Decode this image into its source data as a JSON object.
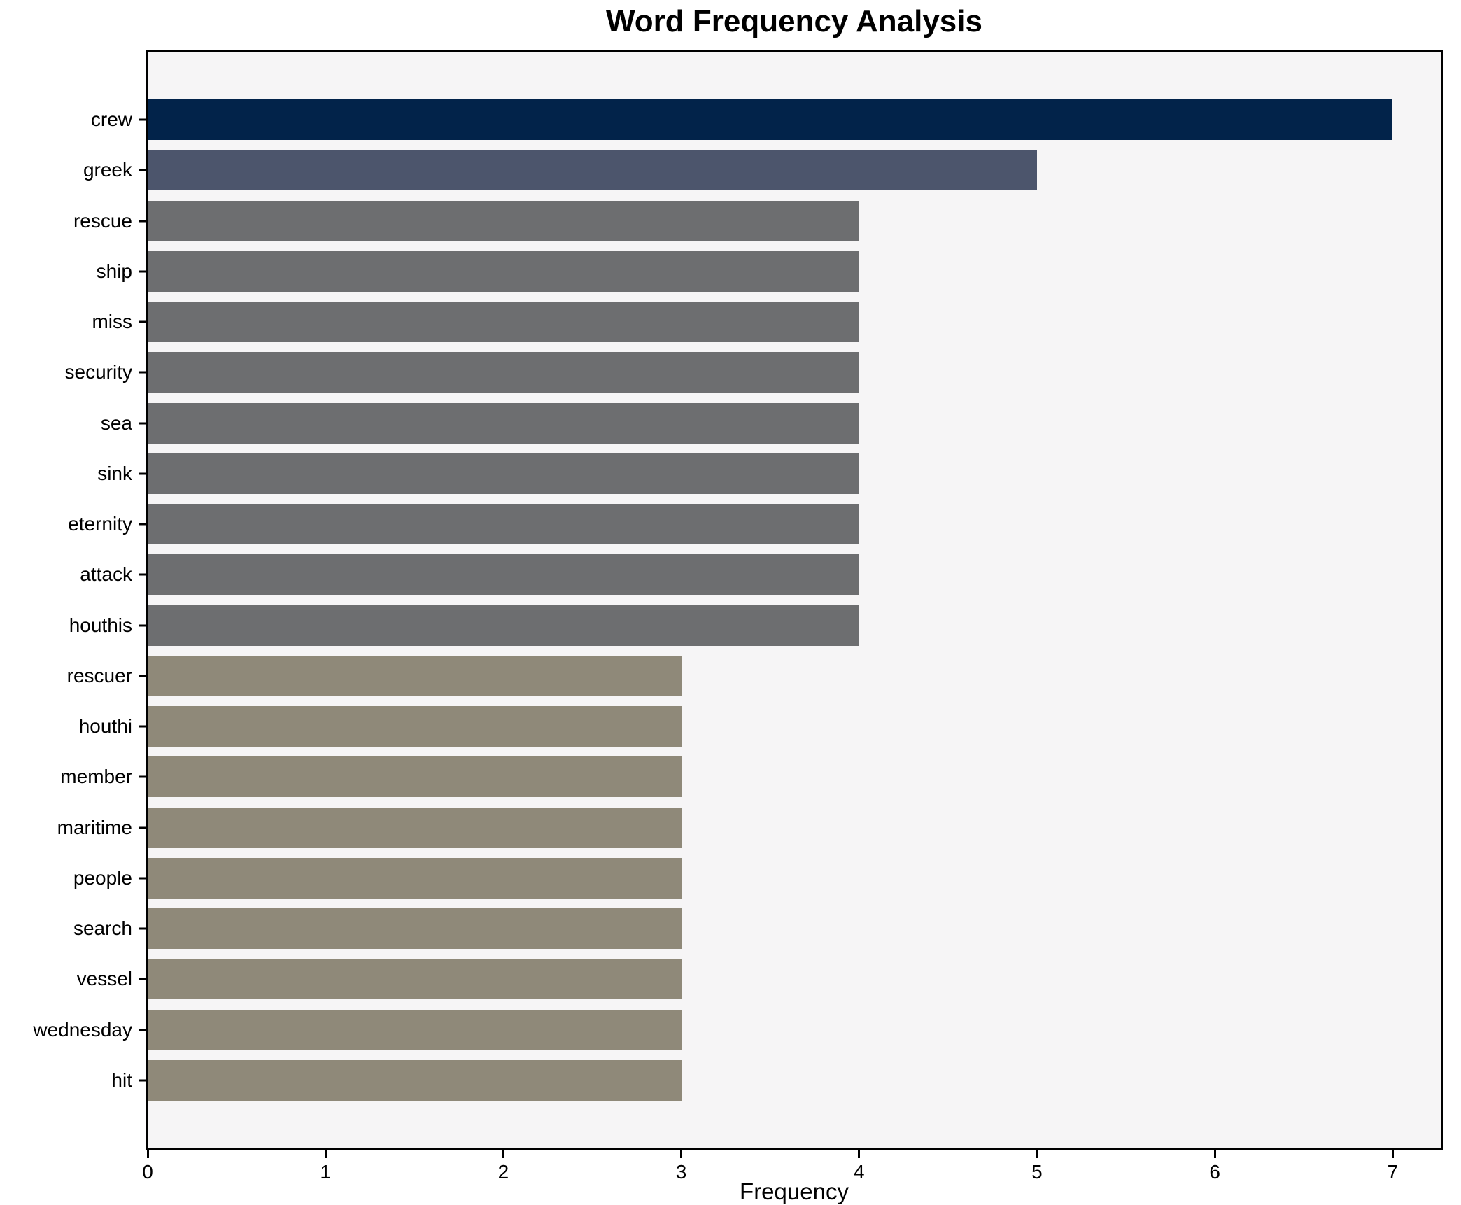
{
  "title": "Word Frequency Analysis",
  "colors": {
    "figure_bg": "#ffffff",
    "plot_bg": "#f6f5f6",
    "spine": "#000000",
    "text": "#000000",
    "bar_freq7": "#02234a",
    "bar_freq5": "#4c556c",
    "bar_freq4": "#6d6e70",
    "bar_freq3": "#8f8979"
  },
  "chart_data": {
    "type": "bar",
    "orientation": "horizontal",
    "title": "Word Frequency Analysis",
    "xlabel": "Frequency",
    "ylabel": "",
    "grid": false,
    "legend": false,
    "xlim": [
      0,
      7.27
    ],
    "xticks": [
      0,
      1,
      2,
      3,
      4,
      5,
      6,
      7
    ],
    "categories": [
      "crew",
      "greek",
      "rescue",
      "ship",
      "miss",
      "security",
      "sea",
      "sink",
      "eternity",
      "attack",
      "houthis",
      "rescuer",
      "houthi",
      "member",
      "maritime",
      "people",
      "search",
      "vessel",
      "wednesday",
      "hit"
    ],
    "values": [
      7,
      5,
      4,
      4,
      4,
      4,
      4,
      4,
      4,
      4,
      4,
      3,
      3,
      3,
      3,
      3,
      3,
      3,
      3,
      3
    ],
    "bar_colors": [
      "#02234a",
      "#4c556c",
      "#6d6e70",
      "#6d6e70",
      "#6d6e70",
      "#6d6e70",
      "#6d6e70",
      "#6d6e70",
      "#6d6e70",
      "#6d6e70",
      "#6d6e70",
      "#8f8979",
      "#8f8979",
      "#8f8979",
      "#8f8979",
      "#8f8979",
      "#8f8979",
      "#8f8979",
      "#8f8979",
      "#8f8979"
    ]
  }
}
